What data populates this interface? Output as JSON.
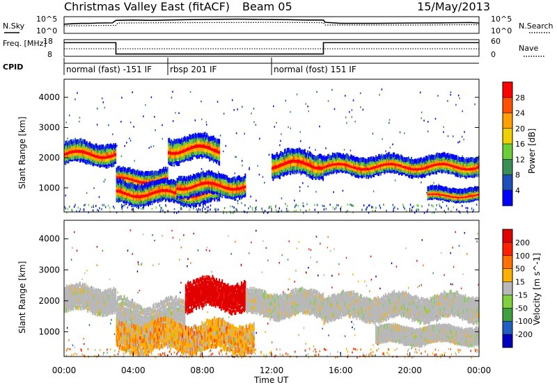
{
  "header": {
    "station": "Christmas Valley East",
    "fit": "(fitACF)",
    "beam": "Beam 05",
    "date": "15/May/2013"
  },
  "chart_data": [
    {
      "type": "line",
      "name": "noise-panel",
      "left_label": "N.Sky",
      "right_label": "N.Search",
      "y_ticks_left": [
        "10^5",
        "10^0"
      ],
      "y_ticks_right": [
        "10^5",
        "10^0"
      ],
      "series": [
        {
          "name": "N.Sky",
          "style": "solid",
          "x_hours": [
            0,
            0.5,
            1,
            1.5,
            2,
            2.8,
            3.0,
            4,
            5,
            6,
            7,
            8,
            9,
            10,
            11,
            12,
            13,
            14,
            15,
            15.1,
            16,
            18,
            20,
            22,
            23.5,
            24
          ],
          "y_frac": [
            0.55,
            0.58,
            0.6,
            0.6,
            0.62,
            0.63,
            0.78,
            0.8,
            0.78,
            0.8,
            0.82,
            0.83,
            0.84,
            0.85,
            0.84,
            0.83,
            0.82,
            0.8,
            0.8,
            0.66,
            0.6,
            0.6,
            0.62,
            0.63,
            0.65,
            0.62
          ]
        },
        {
          "name": "N.Search",
          "style": "dotted",
          "x_hours": [
            0,
            3,
            3.1,
            6,
            9,
            12,
            15,
            15.1,
            20,
            24
          ],
          "y_frac": [
            0.45,
            0.48,
            0.62,
            0.64,
            0.65,
            0.66,
            0.64,
            0.5,
            0.5,
            0.52
          ]
        }
      ]
    },
    {
      "type": "line",
      "name": "freq-nave-panel",
      "left_label": "Freq. [MHz]",
      "right_label": "Nave",
      "y_ticks_left": [
        "18",
        "8"
      ],
      "y_ticks_right": [
        "60",
        "0"
      ],
      "series": [
        {
          "name": "Freq",
          "style": "solid",
          "x_hours": [
            0,
            3,
            3,
            15,
            15,
            24
          ],
          "y_mhz": [
            16,
            16,
            8.5,
            8.5,
            16,
            16
          ]
        },
        {
          "name": "Nave",
          "style": "dotted",
          "x_hours": [
            0,
            24
          ],
          "y_nave": [
            27,
            27
          ]
        }
      ]
    },
    {
      "type": "table",
      "name": "cpid-bar",
      "label": "CPID",
      "segments": [
        {
          "start_h": 0,
          "end_h": 6,
          "text": "normal (fast) -151 IF"
        },
        {
          "start_h": 6,
          "end_h": 12,
          "text": "rbsp 201 IF"
        },
        {
          "start_h": 12,
          "end_h": 24,
          "text": "normal (fost) 151 IF"
        }
      ]
    },
    {
      "type": "heatmap",
      "name": "power-panel",
      "ylabel": "Slant Range [km]",
      "ylim": [
        200,
        4600
      ],
      "yticks": [
        1000,
        2000,
        3000,
        4000
      ],
      "xlim": [
        0,
        24
      ],
      "colorbar": {
        "label": "Power [dB]",
        "ticks": [
          "4",
          "8",
          "12",
          "16",
          "20",
          "24",
          "28"
        ],
        "colors": [
          "#0000ff",
          "#1f4fb8",
          "#3a8f56",
          "#6ccf3a",
          "#f0d000",
          "#ffa000",
          "#ff5000",
          "#ff0000"
        ]
      },
      "bands": [
        {
          "x": [
            0,
            3
          ],
          "center_km": 2150,
          "width_km": 260
        },
        {
          "x": [
            3,
            6
          ],
          "center_km": 1300,
          "width_km": 220
        },
        {
          "x": [
            3,
            9
          ],
          "center_km": 850,
          "width_km": 260
        },
        {
          "x": [
            6.5,
            10.5
          ],
          "center_km": 1100,
          "width_km": 260
        },
        {
          "x": [
            6,
            9
          ],
          "center_km": 2300,
          "width_km": 300
        },
        {
          "x": [
            12,
            15
          ],
          "center_km": 1800,
          "width_km": 300
        },
        {
          "x": [
            15,
            24
          ],
          "center_km": 1750,
          "width_km": 220
        },
        {
          "x": [
            21,
            24
          ],
          "center_km": 800,
          "width_km": 140
        }
      ]
    },
    {
      "type": "heatmap",
      "name": "velocity-panel",
      "ylabel": "Slant Range [km]",
      "ylim": [
        200,
        4600
      ],
      "yticks": [
        1000,
        2000,
        3000,
        4000
      ],
      "xlim": [
        0,
        24
      ],
      "xticks": [
        "00:00",
        "04:00",
        "08:00",
        "12:00",
        "16:00",
        "20:00",
        "00:00"
      ],
      "xlabel": "Time UT",
      "colorbar": {
        "label": "Velocity [m s^-1]",
        "ticks": [
          "200",
          "100",
          "50",
          "15",
          "-15",
          "-50",
          "-100",
          "-200"
        ],
        "colors": [
          "#0000c0",
          "#2060c0",
          "#40a040",
          "#80d040",
          "#b8b8b8",
          "#ffb000",
          "#ff7000",
          "#ff2000",
          "#e00000"
        ]
      },
      "bands": [
        {
          "x": [
            0,
            3
          ],
          "center_km": 2050,
          "width_km": 300
        },
        {
          "x": [
            3,
            7
          ],
          "center_km": 1450,
          "width_km": 400
        },
        {
          "x": [
            3,
            11
          ],
          "center_km": 850,
          "width_km": 350
        },
        {
          "x": [
            7,
            10.5
          ],
          "center_km": 2200,
          "width_km": 350
        },
        {
          "x": [
            10.5,
            15
          ],
          "center_km": 1900,
          "width_km": 300
        },
        {
          "x": [
            15,
            24
          ],
          "center_km": 1800,
          "width_km": 300
        },
        {
          "x": [
            18,
            24
          ],
          "center_km": 900,
          "width_km": 200
        }
      ]
    }
  ]
}
